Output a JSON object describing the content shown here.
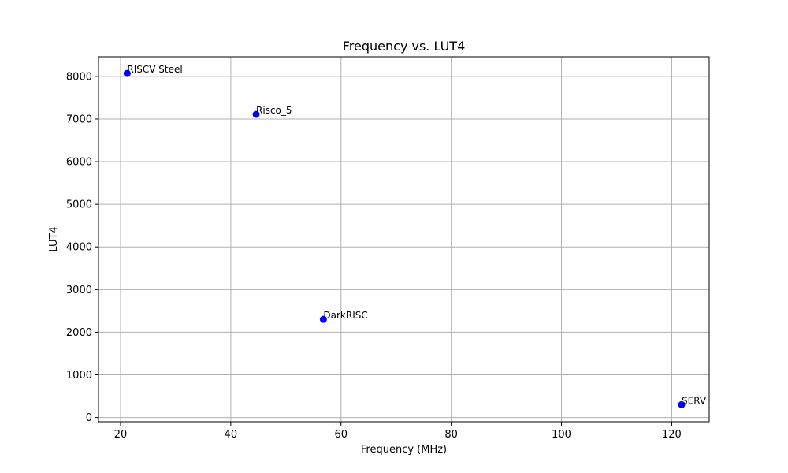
{
  "chart_data": {
    "type": "scatter",
    "title": "Frequency vs. LUT4",
    "xlabel": "Frequency (MHz)",
    "ylabel": "LUT4",
    "xlim": [
      16.0,
      126.8
    ],
    "ylim": [
      -100,
      8460
    ],
    "xticks": [
      20,
      40,
      60,
      80,
      100,
      120
    ],
    "yticks": [
      0,
      1000,
      2000,
      3000,
      4000,
      5000,
      6000,
      7000,
      8000
    ],
    "grid": true,
    "marker_color": "#0000ff",
    "points": [
      {
        "label": "RISCV Steel",
        "x": 21.2,
        "y": 8070
      },
      {
        "label": "Risco_5",
        "x": 44.6,
        "y": 7110
      },
      {
        "label": "DarkRISC",
        "x": 56.8,
        "y": 2300
      },
      {
        "label": "SERV",
        "x": 121.8,
        "y": 300
      }
    ]
  }
}
